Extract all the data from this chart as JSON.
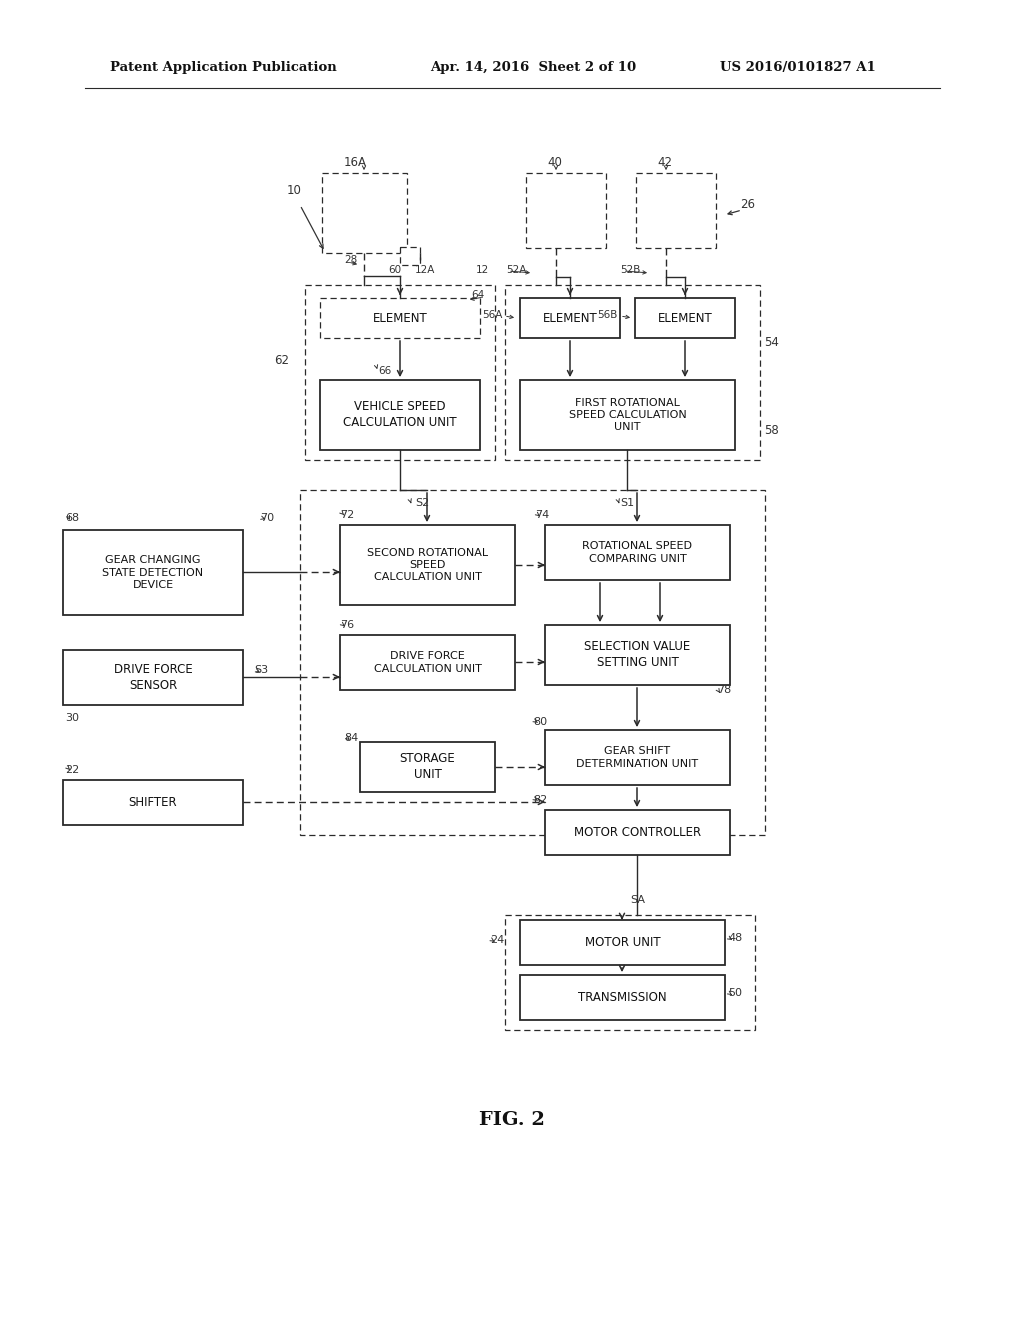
{
  "bg_color": "#ffffff",
  "header_left": "Patent Application Publication",
  "header_mid": "Apr. 14, 2016  Sheet 2 of 10",
  "header_right": "US 2016/0101827 A1",
  "fig_label": "FIG. 2"
}
